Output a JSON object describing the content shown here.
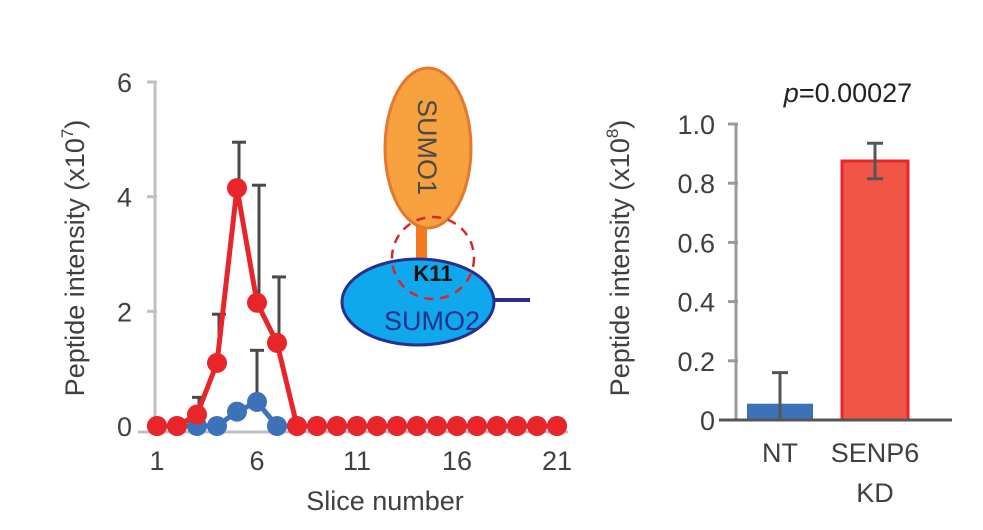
{
  "chart_data": [
    {
      "type": "line",
      "xlabel": "Slice number",
      "ylabel": "Peptide intensity (x10",
      "ylabel_exponent": "7",
      "ylabel_close": ")",
      "xlim": [
        1,
        21
      ],
      "ylim": [
        0,
        6
      ],
      "xticks": [
        1,
        6,
        11,
        16,
        21
      ],
      "yticks": [
        0,
        2,
        4,
        6
      ],
      "series": [
        {
          "name": "NT",
          "color": "#3d72b8",
          "x": [
            1,
            2,
            3,
            4,
            5,
            6,
            7,
            8,
            9,
            10,
            11,
            12,
            13,
            14,
            15,
            16,
            17,
            18,
            19,
            20,
            21
          ],
          "values": [
            0,
            0,
            0,
            0,
            0.25,
            0.42,
            0,
            0,
            0,
            0,
            0,
            0,
            0,
            0,
            0,
            0,
            0,
            0,
            0,
            0,
            0
          ],
          "errors": [
            0,
            0,
            0,
            0,
            0,
            0.9,
            0,
            0,
            0,
            0,
            0,
            0,
            0,
            0,
            0,
            0,
            0,
            0,
            0,
            0,
            0
          ]
        },
        {
          "name": "SENP6 KD",
          "color": "#e8262a",
          "x": [
            1,
            2,
            3,
            4,
            5,
            6,
            7,
            8,
            9,
            10,
            11,
            12,
            13,
            14,
            15,
            16,
            17,
            18,
            19,
            20,
            21
          ],
          "values": [
            0,
            0,
            0.2,
            1.1,
            4.15,
            2.15,
            1.45,
            0,
            0,
            0,
            0,
            0,
            0,
            0,
            0,
            0,
            0,
            0,
            0,
            0,
            0
          ],
          "errors": [
            0,
            0,
            0.3,
            0.85,
            0.8,
            2.05,
            1.15,
            0,
            0,
            0,
            0,
            0,
            0,
            0,
            0,
            0,
            0,
            0,
            0,
            0,
            0
          ]
        }
      ]
    },
    {
      "type": "bar",
      "title_p": "p",
      "title_value": "=0.00027",
      "ylabel": "Peptide intensity (x10",
      "ylabel_exponent": "8",
      "ylabel_close": ")",
      "ylim": [
        0,
        1.0
      ],
      "yticks": [
        "0",
        "0.2",
        "0.4",
        "0.6",
        "0.8",
        "1.0"
      ],
      "categories": [
        "NT",
        "SENP6"
      ],
      "category_second_lines": [
        "",
        "KD"
      ],
      "values": [
        0.055,
        0.875
      ],
      "errors": [
        0.105,
        0.06
      ],
      "colors": [
        "#3d72b8",
        "#f05546"
      ]
    }
  ],
  "diagram": {
    "sumo1_label": "SUMO1",
    "sumo2_label": "SUMO2",
    "site_label": "K11",
    "sumo1_color": "#f7a23f",
    "sumo2_color": "#0fa8ec"
  }
}
